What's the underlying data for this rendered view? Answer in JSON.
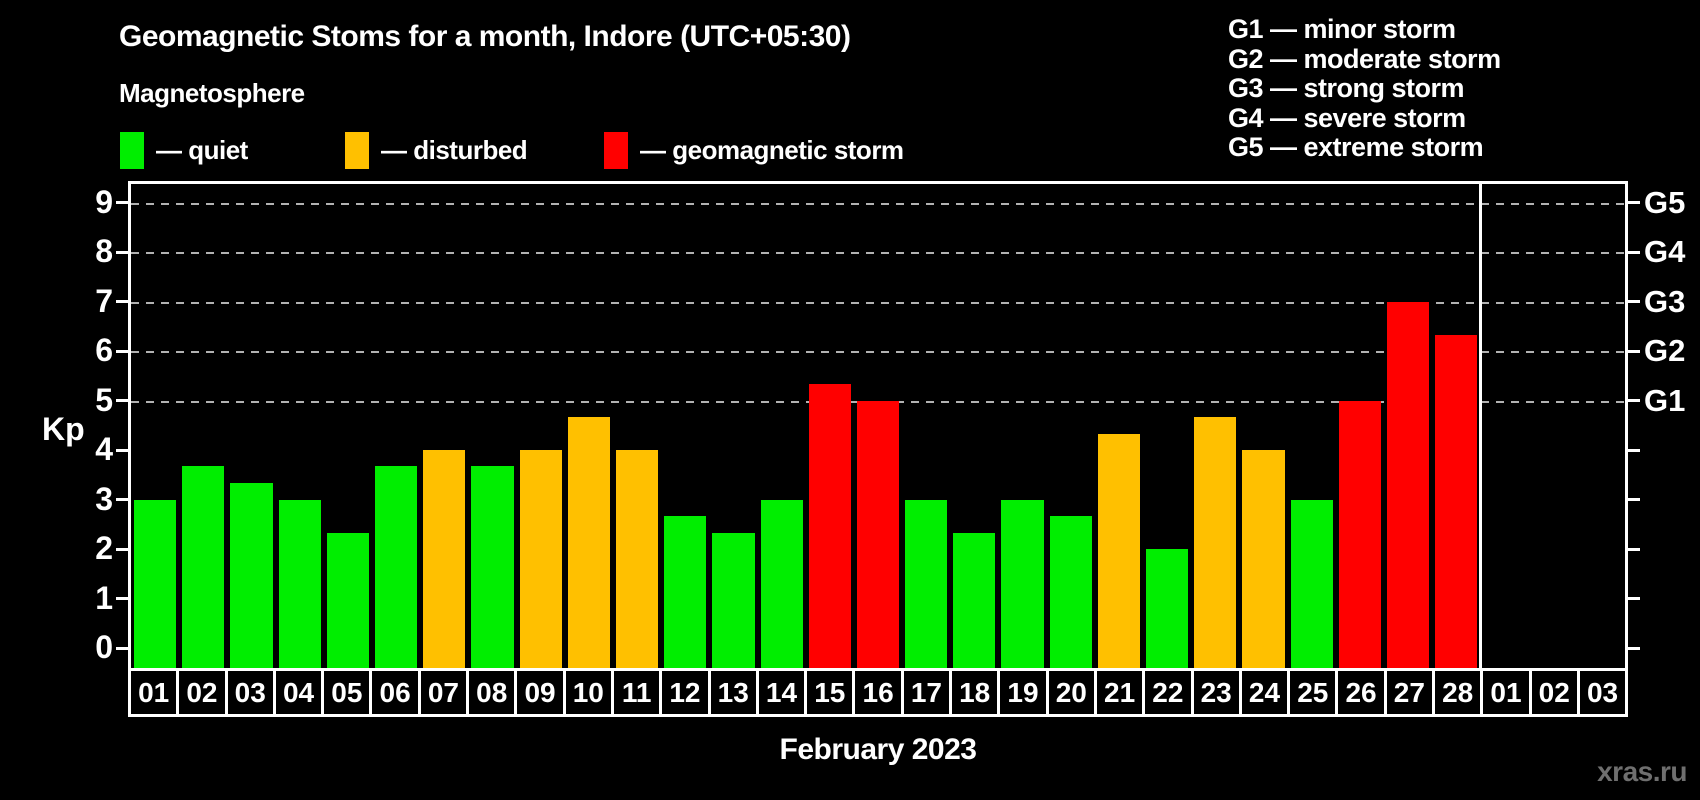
{
  "header": {
    "title": "Geomagnetic Stoms for a month, Indore (UTC+05:30)",
    "subtitle": "Magnetosphere"
  },
  "legend": {
    "items": [
      {
        "key": "quiet",
        "label": "— quiet",
        "color": "#00ee00"
      },
      {
        "key": "disturbed",
        "label": "— disturbed",
        "color": "#ffc000"
      },
      {
        "key": "storm",
        "label": "— geomagnetic storm",
        "color": "#ff0000"
      }
    ]
  },
  "storm_scale_legend": {
    "lines": [
      "G1 — minor storm",
      "G2 — moderate storm",
      "G3 — strong storm",
      "G4 — severe storm",
      "G5 — extreme storm"
    ]
  },
  "chart_data": {
    "type": "bar",
    "title": "Geomagnetic Stoms for a month, Indore (UTC+05:30)",
    "subtitle": "Magnetosphere",
    "ylabel": "Kp",
    "xlabel": "February 2023",
    "ylim": [
      0,
      9
    ],
    "grid": "dashed horizontal lines at Kp 5-9 only",
    "legend_position": "above chart (quiet/disturbed/storm), top-right (G-scale)",
    "yticks_left": [
      0,
      1,
      2,
      3,
      4,
      5,
      6,
      7,
      8,
      9
    ],
    "right_axis": [
      {
        "kp": 5,
        "label": "G1"
      },
      {
        "kp": 6,
        "label": "G2"
      },
      {
        "kp": 7,
        "label": "G3"
      },
      {
        "kp": 8,
        "label": "G4"
      },
      {
        "kp": 9,
        "label": "G5"
      }
    ],
    "categories": [
      "01",
      "02",
      "03",
      "04",
      "05",
      "06",
      "07",
      "08",
      "09",
      "10",
      "11",
      "12",
      "13",
      "14",
      "15",
      "16",
      "17",
      "18",
      "19",
      "20",
      "21",
      "22",
      "23",
      "24",
      "25",
      "26",
      "27",
      "28",
      "01",
      "02",
      "03"
    ],
    "values": [
      3,
      3.67,
      3.33,
      3,
      2.33,
      3.67,
      4,
      3.67,
      4,
      4.67,
      4,
      2.67,
      2.33,
      3,
      5.33,
      5,
      3,
      2.33,
      3,
      2.67,
      4.33,
      2,
      4.67,
      4,
      3,
      5,
      7,
      6.33,
      null,
      null,
      null
    ],
    "statuses": [
      "quiet",
      "quiet",
      "quiet",
      "quiet",
      "quiet",
      "quiet",
      "disturbed",
      "quiet",
      "disturbed",
      "disturbed",
      "disturbed",
      "quiet",
      "quiet",
      "quiet",
      "storm",
      "storm",
      "quiet",
      "quiet",
      "quiet",
      "quiet",
      "disturbed",
      "quiet",
      "disturbed",
      "disturbed",
      "quiet",
      "storm",
      "storm",
      "storm",
      null,
      null,
      null
    ],
    "status_colors": {
      "quiet": "#00ee00",
      "disturbed": "#ffc000",
      "storm": "#ff0000"
    },
    "month_separator_after_index": 27
  },
  "footer": {
    "month_label": "February 2023",
    "watermark": "xras.ru"
  },
  "colors": {
    "background": "#000000",
    "frame": "#ffffff",
    "gridline": "#b2b2b2",
    "text": "#ffffff",
    "watermark": "#6f6f6f"
  }
}
